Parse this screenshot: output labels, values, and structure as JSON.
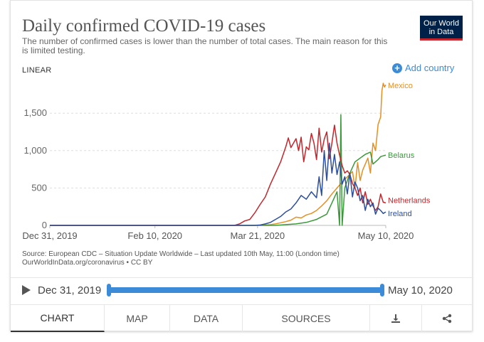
{
  "header": {
    "title": "Daily confirmed COVID-19 cases",
    "subtitle": "The number of confirmed cases is lower than the number of total cases. The main reason for this is limited testing.",
    "logo_line1": "Our World",
    "logo_line2": "in Data"
  },
  "controls": {
    "scale_label": "LINEAR",
    "add_country_label": "Add country",
    "add_country_icon": "plus-circle-icon"
  },
  "source": {
    "line1": "Source: European CDC – Situation Update Worldwide – Last updated 10th May, 11:00 (London time)",
    "line2": "OurWorldInData.org/coronavirus • CC BY"
  },
  "timeline": {
    "play_icon": "play-icon",
    "start_label": "Dec 31, 2019",
    "end_label": "May 10, 2020"
  },
  "tabs": [
    {
      "label": "CHART",
      "active": true
    },
    {
      "label": "MAP"
    },
    {
      "label": "DATA"
    },
    {
      "label": "SOURCES"
    },
    {
      "icon": "download-icon"
    },
    {
      "icon": "share-icon"
    }
  ],
  "colors": {
    "Mexico": "#e49023",
    "Belarus": "#3a9a3a",
    "Netherlands": "#c1272d",
    "Ireland": "#2e4f9b",
    "accent": "#3b8bd9"
  },
  "chart_data": {
    "type": "line",
    "x_start": "Dec 31, 2019",
    "x_end": "May 10, 2020",
    "xlim": [
      0,
      131
    ],
    "ylim": [
      0,
      2000
    ],
    "yticks": [
      0,
      500,
      1000,
      1500
    ],
    "ytick_labels": [
      "0",
      "500",
      "1,000",
      "1,500"
    ],
    "xticks": [
      0,
      41,
      81,
      131
    ],
    "xtick_labels": [
      "Dec 31, 2019",
      "Feb 10, 2020",
      "Mar 21, 2020",
      "May 10, 2020"
    ],
    "series": [
      {
        "name": "Mexico",
        "points": [
          [
            0,
            0
          ],
          [
            78,
            0
          ],
          [
            80,
            3
          ],
          [
            82,
            5
          ],
          [
            84,
            8
          ],
          [
            86,
            10
          ],
          [
            88,
            20
          ],
          [
            90,
            35
          ],
          [
            92,
            50
          ],
          [
            94,
            70
          ],
          [
            96,
            110
          ],
          [
            98,
            100
          ],
          [
            100,
            140
          ],
          [
            102,
            160
          ],
          [
            104,
            200
          ],
          [
            106,
            260
          ],
          [
            108,
            330
          ],
          [
            110,
            420
          ],
          [
            112,
            500
          ],
          [
            114,
            580
          ],
          [
            116,
            650
          ],
          [
            118,
            720
          ],
          [
            119,
            500
          ],
          [
            120,
            840
          ],
          [
            121,
            600
          ],
          [
            122,
            740
          ],
          [
            124,
            900
          ],
          [
            125,
            700
          ],
          [
            126,
            1100
          ],
          [
            127,
            1000
          ],
          [
            128,
            1350
          ],
          [
            129,
            1450
          ],
          [
            129.5,
            1800
          ],
          [
            130,
            1900
          ],
          [
            130.5,
            1850
          ],
          [
            131,
            1880
          ]
        ]
      },
      {
        "name": "Belarus",
        "points": [
          [
            0,
            0
          ],
          [
            88,
            0
          ],
          [
            92,
            10
          ],
          [
            96,
            20
          ],
          [
            100,
            40
          ],
          [
            104,
            80
          ],
          [
            108,
            150
          ],
          [
            110,
            300
          ],
          [
            112,
            450
          ],
          [
            113,
            0
          ],
          [
            113.5,
            1480
          ],
          [
            114,
            0
          ],
          [
            115,
            500
          ],
          [
            117,
            700
          ],
          [
            119,
            850
          ],
          [
            121,
            900
          ],
          [
            123,
            950
          ],
          [
            125,
            980
          ],
          [
            126,
            820
          ],
          [
            128,
            880
          ],
          [
            129,
            920
          ],
          [
            130,
            930
          ],
          [
            131,
            940
          ]
        ]
      },
      {
        "name": "Netherlands",
        "points": [
          [
            0,
            0
          ],
          [
            72,
            0
          ],
          [
            74,
            20
          ],
          [
            76,
            60
          ],
          [
            78,
            80
          ],
          [
            80,
            170
          ],
          [
            82,
            280
          ],
          [
            84,
            380
          ],
          [
            86,
            550
          ],
          [
            88,
            700
          ],
          [
            90,
            850
          ],
          [
            92,
            1050
          ],
          [
            93,
            1170
          ],
          [
            94,
            1040
          ],
          [
            96,
            1160
          ],
          [
            97,
            1000
          ],
          [
            98,
            1180
          ],
          [
            99,
            850
          ],
          [
            100,
            1050
          ],
          [
            101,
            1010
          ],
          [
            102,
            1230
          ],
          [
            103,
            1100
          ],
          [
            104,
            880
          ],
          [
            105,
            1300
          ],
          [
            106,
            980
          ],
          [
            107,
            1150
          ],
          [
            108,
            1250
          ],
          [
            109,
            890
          ],
          [
            110,
            1100
          ],
          [
            111,
            1340
          ],
          [
            112,
            1100
          ],
          [
            113,
            940
          ],
          [
            114,
            800
          ],
          [
            115,
            700
          ],
          [
            116,
            730
          ],
          [
            117,
            680
          ],
          [
            118,
            560
          ],
          [
            119,
            500
          ],
          [
            120,
            400
          ],
          [
            121,
            500
          ],
          [
            122,
            300
          ],
          [
            123,
            450
          ],
          [
            124,
            280
          ],
          [
            125,
            350
          ],
          [
            126,
            260
          ],
          [
            127,
            200
          ],
          [
            128,
            250
          ],
          [
            129,
            420
          ],
          [
            130,
            310
          ],
          [
            131,
            300
          ]
        ]
      },
      {
        "name": "Ireland",
        "points": [
          [
            0,
            0
          ],
          [
            80,
            0
          ],
          [
            82,
            5
          ],
          [
            84,
            20
          ],
          [
            86,
            40
          ],
          [
            88,
            80
          ],
          [
            90,
            120
          ],
          [
            92,
            180
          ],
          [
            94,
            220
          ],
          [
            96,
            300
          ],
          [
            98,
            400
          ],
          [
            100,
            350
          ],
          [
            102,
            450
          ],
          [
            104,
            370
          ],
          [
            105,
            650
          ],
          [
            106,
            400
          ],
          [
            107,
            1000
          ],
          [
            108,
            600
          ],
          [
            109,
            1100
          ],
          [
            110,
            700
          ],
          [
            111,
            950
          ],
          [
            112,
            680
          ],
          [
            113,
            850
          ],
          [
            114,
            550
          ],
          [
            115,
            650
          ],
          [
            116,
            420
          ],
          [
            117,
            700
          ],
          [
            118,
            380
          ],
          [
            119,
            580
          ],
          [
            120,
            500
          ],
          [
            121,
            330
          ],
          [
            122,
            400
          ],
          [
            123,
            200
          ],
          [
            124,
            350
          ],
          [
            125,
            250
          ],
          [
            126,
            300
          ],
          [
            127,
            150
          ],
          [
            128,
            230
          ],
          [
            129,
            200
          ],
          [
            130,
            160
          ],
          [
            131,
            180
          ]
        ]
      }
    ]
  }
}
